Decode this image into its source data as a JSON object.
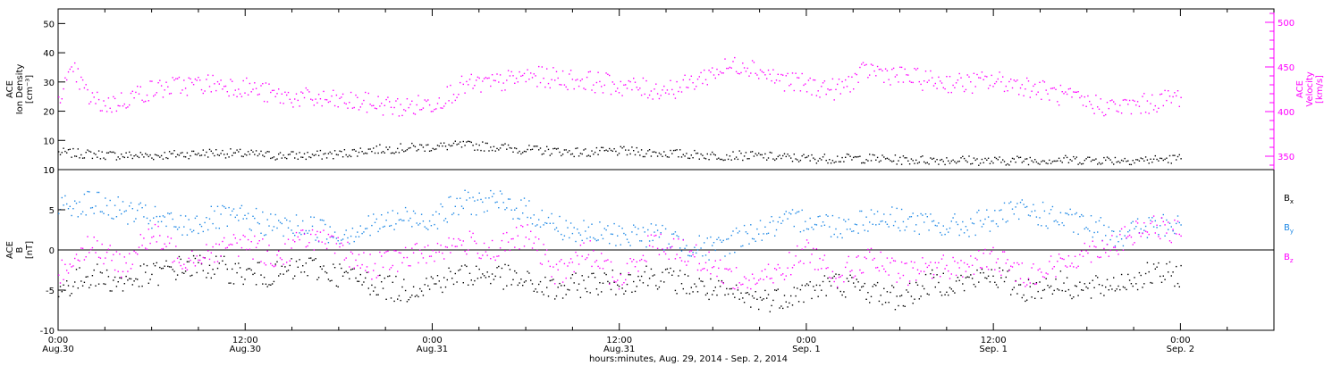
{
  "chart_data": [
    {
      "type": "scatter",
      "panel": "plasma",
      "ylabel": [
        "ACE",
        "Ion Density",
        "[cm⁻³]"
      ],
      "ylabel_right": [
        "ACE",
        "Velocity",
        "[km/s]"
      ],
      "ylim": [
        0,
        55
      ],
      "yticks": [
        0,
        10,
        20,
        30,
        40,
        50
      ],
      "ylim_right": [
        335,
        515
      ],
      "yticks_right": [
        350,
        400,
        450,
        500
      ],
      "colors": {
        "density": "#000000",
        "velocity": "#ff00ff"
      },
      "series": [
        {
          "axis": "left",
          "color": "#000000",
          "t": [
            0,
            2,
            4,
            6,
            8,
            10,
            12,
            14,
            16,
            18,
            20,
            22,
            24,
            26,
            28,
            30,
            32,
            34,
            36,
            38,
            40,
            42,
            44,
            46,
            48,
            50,
            52,
            54,
            56,
            58,
            60,
            62,
            64,
            66,
            68,
            70,
            72
          ],
          "values": [
            6,
            5.5,
            5,
            5,
            5.5,
            6,
            5.5,
            5,
            5,
            5.5,
            7,
            7.5,
            8,
            8.5,
            8,
            7,
            6.5,
            6,
            6.5,
            6,
            5.5,
            5,
            5,
            4.5,
            4,
            4,
            4,
            3.5,
            3.5,
            3.5,
            3,
            3.5,
            3.5,
            3.5,
            3.5,
            3.5,
            4
          ]
        },
        {
          "axis": "right",
          "color": "#ff00ff",
          "t": [
            0,
            1,
            2,
            3,
            4,
            5,
            6,
            8,
            10,
            12,
            14,
            16,
            18,
            20,
            22,
            24,
            26,
            28,
            30,
            32,
            34,
            36,
            38,
            40,
            42,
            44,
            46,
            48,
            50,
            52,
            54,
            56,
            58,
            60,
            62,
            64,
            66,
            68,
            70,
            72
          ],
          "values": [
            420,
            445,
            415,
            408,
            412,
            420,
            425,
            430,
            432,
            428,
            418,
            415,
            412,
            410,
            405,
            410,
            430,
            432,
            440,
            438,
            435,
            430,
            425,
            428,
            445,
            455,
            438,
            430,
            425,
            448,
            440,
            435,
            432,
            435,
            430,
            420,
            410,
            405,
            410,
            418
          ]
        }
      ]
    },
    {
      "type": "scatter",
      "panel": "magnetic",
      "ylabel": [
        "ACE",
        "B",
        "[nT]"
      ],
      "ylim": [
        -10,
        10
      ],
      "yticks": [
        -10,
        -5,
        0,
        5,
        10
      ],
      "legend": [
        {
          "main": "B",
          "sub": "x",
          "color": "#000000"
        },
        {
          "main": "B",
          "sub": "y",
          "color": "#1e88e5"
        },
        {
          "main": "B",
          "sub": "z",
          "color": "#ff00ff"
        }
      ],
      "series": [
        {
          "color": "#000000",
          "t": [
            0,
            2,
            4,
            6,
            8,
            10,
            12,
            14,
            16,
            18,
            20,
            22,
            24,
            26,
            28,
            30,
            32,
            34,
            36,
            38,
            40,
            42,
            44,
            46,
            48,
            50,
            52,
            54,
            56,
            58,
            60,
            62,
            64,
            66,
            68,
            70,
            72
          ],
          "values": [
            -5,
            -3,
            -4,
            -3,
            -2,
            -2,
            -3,
            -3,
            -2,
            -3,
            -4,
            -5,
            -4,
            -3,
            -3,
            -4,
            -5,
            -4,
            -4,
            -3,
            -4,
            -5,
            -6,
            -6,
            -5,
            -4,
            -5,
            -6,
            -4,
            -4,
            -3,
            -5,
            -4,
            -5,
            -4,
            -3,
            -3
          ]
        },
        {
          "color": "#1e88e5",
          "t": [
            0,
            2,
            4,
            6,
            8,
            10,
            12,
            14,
            16,
            18,
            20,
            22,
            24,
            26,
            28,
            30,
            32,
            34,
            36,
            38,
            40,
            42,
            44,
            46,
            48,
            50,
            52,
            54,
            56,
            58,
            60,
            62,
            64,
            66,
            68,
            70,
            72
          ],
          "values": [
            5.5,
            6,
            5,
            4,
            3,
            4,
            4,
            3,
            3,
            2,
            3,
            4,
            4,
            6,
            6,
            5,
            3,
            2,
            2,
            2,
            1,
            0,
            2,
            3,
            4,
            3,
            4,
            4,
            3,
            3,
            4,
            5,
            4,
            3,
            2,
            3,
            3
          ]
        },
        {
          "color": "#ff00ff",
          "t": [
            0,
            2,
            4,
            6,
            8,
            10,
            12,
            14,
            16,
            18,
            20,
            22,
            24,
            26,
            28,
            30,
            32,
            34,
            36,
            38,
            40,
            42,
            44,
            46,
            48,
            50,
            52,
            54,
            56,
            58,
            60,
            62,
            64,
            66,
            68,
            70,
            72
          ],
          "values": [
            -3,
            1,
            -2,
            2,
            -1,
            0,
            1,
            -1,
            2,
            0,
            -2,
            -1,
            0,
            1,
            0,
            2,
            -3,
            0,
            -4,
            1,
            0,
            -2,
            -4,
            -3,
            0,
            -3,
            -1,
            -3,
            -2,
            -2,
            -1,
            -3,
            -2,
            0,
            1,
            3,
            2
          ]
        }
      ]
    }
  ],
  "x_axis": {
    "xlim_hours": [
      0,
      78
    ],
    "ticks": [
      {
        "time": "0:00",
        "date": "Aug.30"
      },
      {
        "time": "12:00",
        "date": "Aug.30"
      },
      {
        "time": "0:00",
        "date": "Aug.31"
      },
      {
        "time": "12:00",
        "date": "Aug.31"
      },
      {
        "time": "0:00",
        "date": "Sep. 1"
      },
      {
        "time": "12:00",
        "date": "Sep. 1"
      },
      {
        "time": "0:00",
        "date": "Sep. 2"
      }
    ],
    "xlabel": "hours:minutes, Aug. 29, 2014 - Sep.  2, 2014"
  }
}
